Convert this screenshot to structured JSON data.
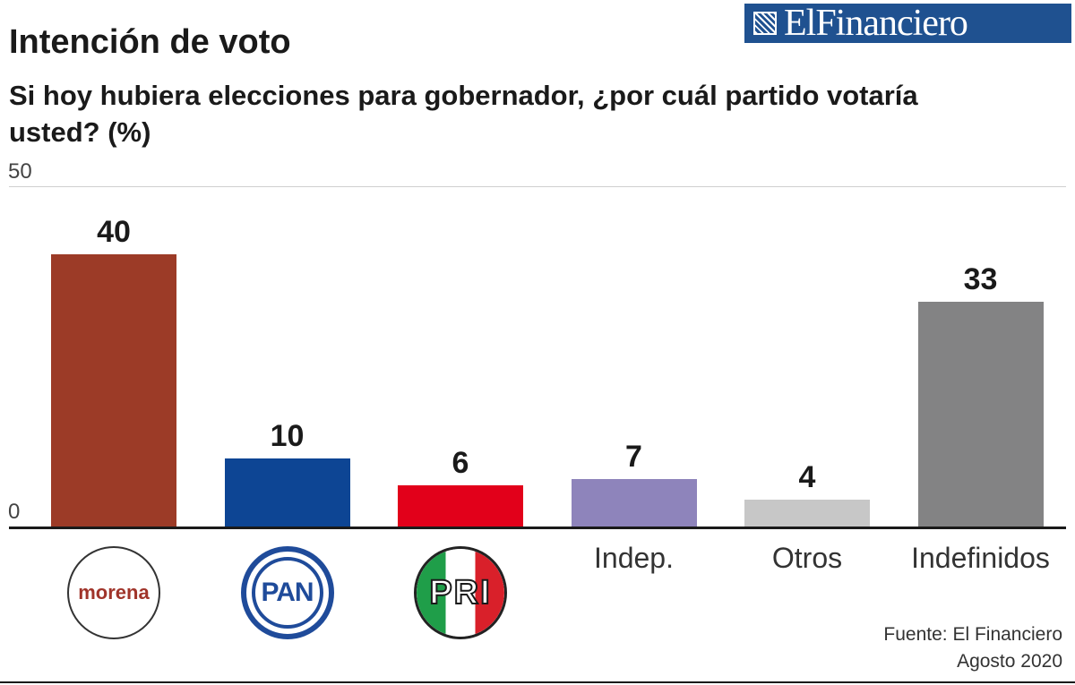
{
  "header": {
    "title": "Intención de voto",
    "subtitle": "Si hoy hubiera elecciones para gobernador, ¿por cuál partido votaría usted? (%)",
    "logo_text": "ElFinanciero"
  },
  "footer": {
    "source": "Fuente: El Financiero",
    "date": "Agosto 2020"
  },
  "chart_data": {
    "type": "bar",
    "title": "Intención de voto",
    "subtitle": "Si hoy hubiera elecciones para gobernador, ¿por cuál partido votaría usted? (%)",
    "categories": [
      "morena",
      "PAN",
      "PRI",
      "Indep.",
      "Otros",
      "Indefinidos"
    ],
    "values": [
      40,
      10,
      6,
      7,
      4,
      33
    ],
    "colors": [
      "#9c3b27",
      "#0d4594",
      "#e2001a",
      "#8e84bb",
      "#c7c7c7",
      "#838384"
    ],
    "category_labels_as_logos": [
      true,
      true,
      true,
      false,
      false,
      false
    ],
    "ylim": [
      0,
      50
    ],
    "yticks": [
      "0",
      "50"
    ],
    "grid": true,
    "legend": "none"
  }
}
